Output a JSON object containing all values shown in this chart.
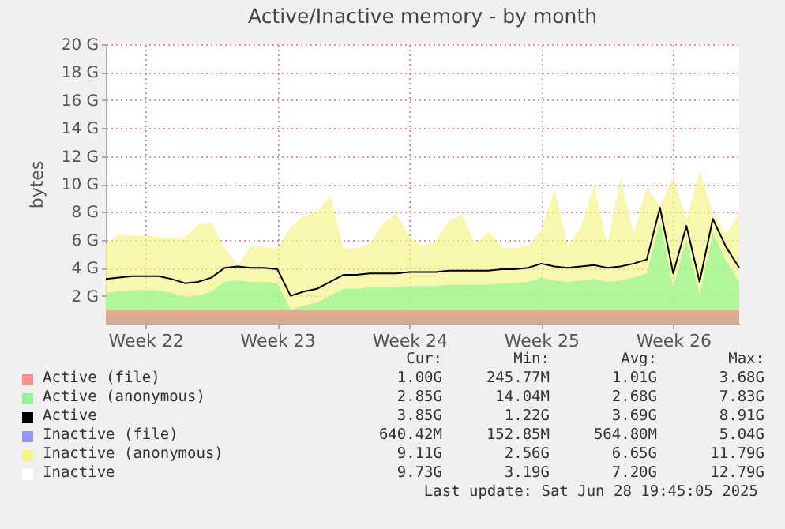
{
  "chart_data": {
    "type": "area",
    "title": "Active/Inactive memory - by month",
    "ylabel": "bytes",
    "categories": [
      null,
      null,
      null,
      "Week 22",
      null,
      null,
      null,
      null,
      null,
      null,
      null,
      null,
      null,
      "Week 23",
      null,
      null,
      null,
      null,
      null,
      null,
      null,
      null,
      null,
      "Week 24",
      null,
      null,
      null,
      null,
      null,
      null,
      null,
      null,
      null,
      "Week 25",
      null,
      null,
      null,
      null,
      null,
      null,
      null,
      null,
      null,
      "Week 26",
      null,
      null,
      null,
      null,
      null
    ],
    "ylim": [
      0,
      20
    ],
    "yticks": [
      {
        "value": 2,
        "label": "2 G"
      },
      {
        "value": 4,
        "label": "4 G"
      },
      {
        "value": 6,
        "label": "6 G"
      },
      {
        "value": 8,
        "label": "8 G"
      },
      {
        "value": 10,
        "label": "10 G"
      },
      {
        "value": 12,
        "label": "12 G"
      },
      {
        "value": 14,
        "label": "14 G"
      },
      {
        "value": 16,
        "label": "16 G"
      },
      {
        "value": 18,
        "label": "18 G"
      },
      {
        "value": 20,
        "label": "20 G"
      }
    ],
    "grid": true,
    "legend": "bottom",
    "series": [
      {
        "name": "Active (file)",
        "color": "#f4928a",
        "values": [
          1.0,
          1.0,
          1.0,
          1.0,
          1.0,
          1.0,
          1.0,
          1.0,
          1.0,
          1.0,
          1.0,
          1.0,
          1.0,
          1.0,
          1.0,
          1.0,
          1.0,
          1.0,
          1.0,
          1.0,
          1.0,
          1.0,
          1.0,
          1.0,
          1.0,
          1.0,
          1.0,
          1.0,
          1.0,
          1.0,
          1.0,
          1.0,
          1.0,
          1.0,
          1.0,
          1.0,
          1.0,
          1.0,
          1.0,
          1.0,
          1.0,
          1.0,
          1.0,
          1.0,
          1.0,
          1.0,
          1.0,
          1.0,
          1.0
        ]
      },
      {
        "name": "Active (anonymous)",
        "color": "#93f593",
        "values": [
          2.2,
          2.3,
          2.4,
          2.4,
          2.4,
          2.2,
          1.9,
          2.0,
          2.3,
          3.0,
          3.1,
          3.0,
          3.0,
          2.9,
          1.0,
          1.3,
          1.5,
          2.0,
          2.5,
          2.5,
          2.6,
          2.6,
          2.6,
          2.7,
          2.7,
          2.7,
          2.8,
          2.8,
          2.8,
          2.8,
          2.9,
          2.9,
          3.0,
          3.3,
          3.1,
          3.0,
          3.1,
          3.2,
          3.0,
          3.1,
          3.3,
          3.6,
          7.3,
          2.6,
          6.0,
          2.0,
          6.5,
          4.5,
          3.0
        ]
      },
      {
        "name": "Active",
        "color": "#000000",
        "type": "line",
        "values": [
          3.2,
          3.3,
          3.4,
          3.4,
          3.4,
          3.2,
          2.9,
          3.0,
          3.3,
          4.0,
          4.1,
          4.0,
          4.0,
          3.9,
          2.0,
          2.3,
          2.5,
          3.0,
          3.5,
          3.5,
          3.6,
          3.6,
          3.6,
          3.7,
          3.7,
          3.7,
          3.8,
          3.8,
          3.8,
          3.8,
          3.9,
          3.9,
          4.0,
          4.3,
          4.1,
          4.0,
          4.1,
          4.2,
          4.0,
          4.1,
          4.3,
          4.6,
          8.3,
          3.6,
          7.0,
          3.0,
          7.5,
          5.5,
          4.0
        ]
      },
      {
        "name": "Inactive (file)",
        "color": "#9494f4",
        "values": [
          0.6,
          0.6,
          0.6,
          0.6,
          0.6,
          0.6,
          0.6,
          0.6,
          0.6,
          0.6,
          0.6,
          0.6,
          0.6,
          0.6,
          0.6,
          0.6,
          0.6,
          0.6,
          0.6,
          0.6,
          0.6,
          0.6,
          0.6,
          0.6,
          0.6,
          0.6,
          0.6,
          0.6,
          0.6,
          0.6,
          0.6,
          0.6,
          0.6,
          0.6,
          0.6,
          0.6,
          0.6,
          0.6,
          0.6,
          0.6,
          0.6,
          0.6,
          0.6,
          0.6,
          0.6,
          0.6,
          0.6,
          0.6,
          0.6
        ]
      },
      {
        "name": "Inactive (anonymous)",
        "color": "#f4f48a",
        "values": [
          5.7,
          6.4,
          6.3,
          6.3,
          6.2,
          6.1,
          6.2,
          7.1,
          7.2,
          5.4,
          4.2,
          5.6,
          5.5,
          5.4,
          6.9,
          7.7,
          8.0,
          9.2,
          5.4,
          5.4,
          5.7,
          7.2,
          7.9,
          6.2,
          5.6,
          5.9,
          7.4,
          7.8,
          5.7,
          6.6,
          5.5,
          5.4,
          5.6,
          6.7,
          9.6,
          5.6,
          6.9,
          9.9,
          5.6,
          10.4,
          6.4,
          9.8,
          8.4,
          10.5,
          7.4,
          11.0,
          7.9,
          6.4,
          7.9
        ]
      },
      {
        "name": "Inactive",
        "color": "#ffffff",
        "type": "line",
        "values": [
          null,
          null,
          null,
          null,
          null,
          null,
          null,
          null,
          null,
          null,
          null,
          null,
          null,
          null,
          null,
          null,
          null,
          null,
          null,
          null,
          null,
          null,
          null,
          null,
          null,
          null,
          null,
          null,
          null,
          null,
          null,
          null,
          null,
          null,
          null,
          null,
          null,
          null,
          null,
          null,
          null,
          null,
          null,
          null,
          null,
          null,
          null,
          null,
          null
        ]
      }
    ],
    "annotations": [
      "Cur:",
      "Min:",
      "Avg:",
      "Max:",
      "1.00G",
      "245.77M",
      "1.01G",
      "3.68G",
      "2.85G",
      "14.04M",
      "2.68G",
      "7.83G",
      "3.85G",
      "1.22G",
      "3.69G",
      "8.91G",
      "640.42M",
      "152.85M",
      "564.80M",
      "5.04G",
      "9.11G",
      "2.56G",
      "6.65G",
      "11.79G",
      "9.73G",
      "3.19G",
      "7.20G",
      "12.79G",
      "Last update: Sat Jun 28 19:45:05 2025"
    ]
  }
}
